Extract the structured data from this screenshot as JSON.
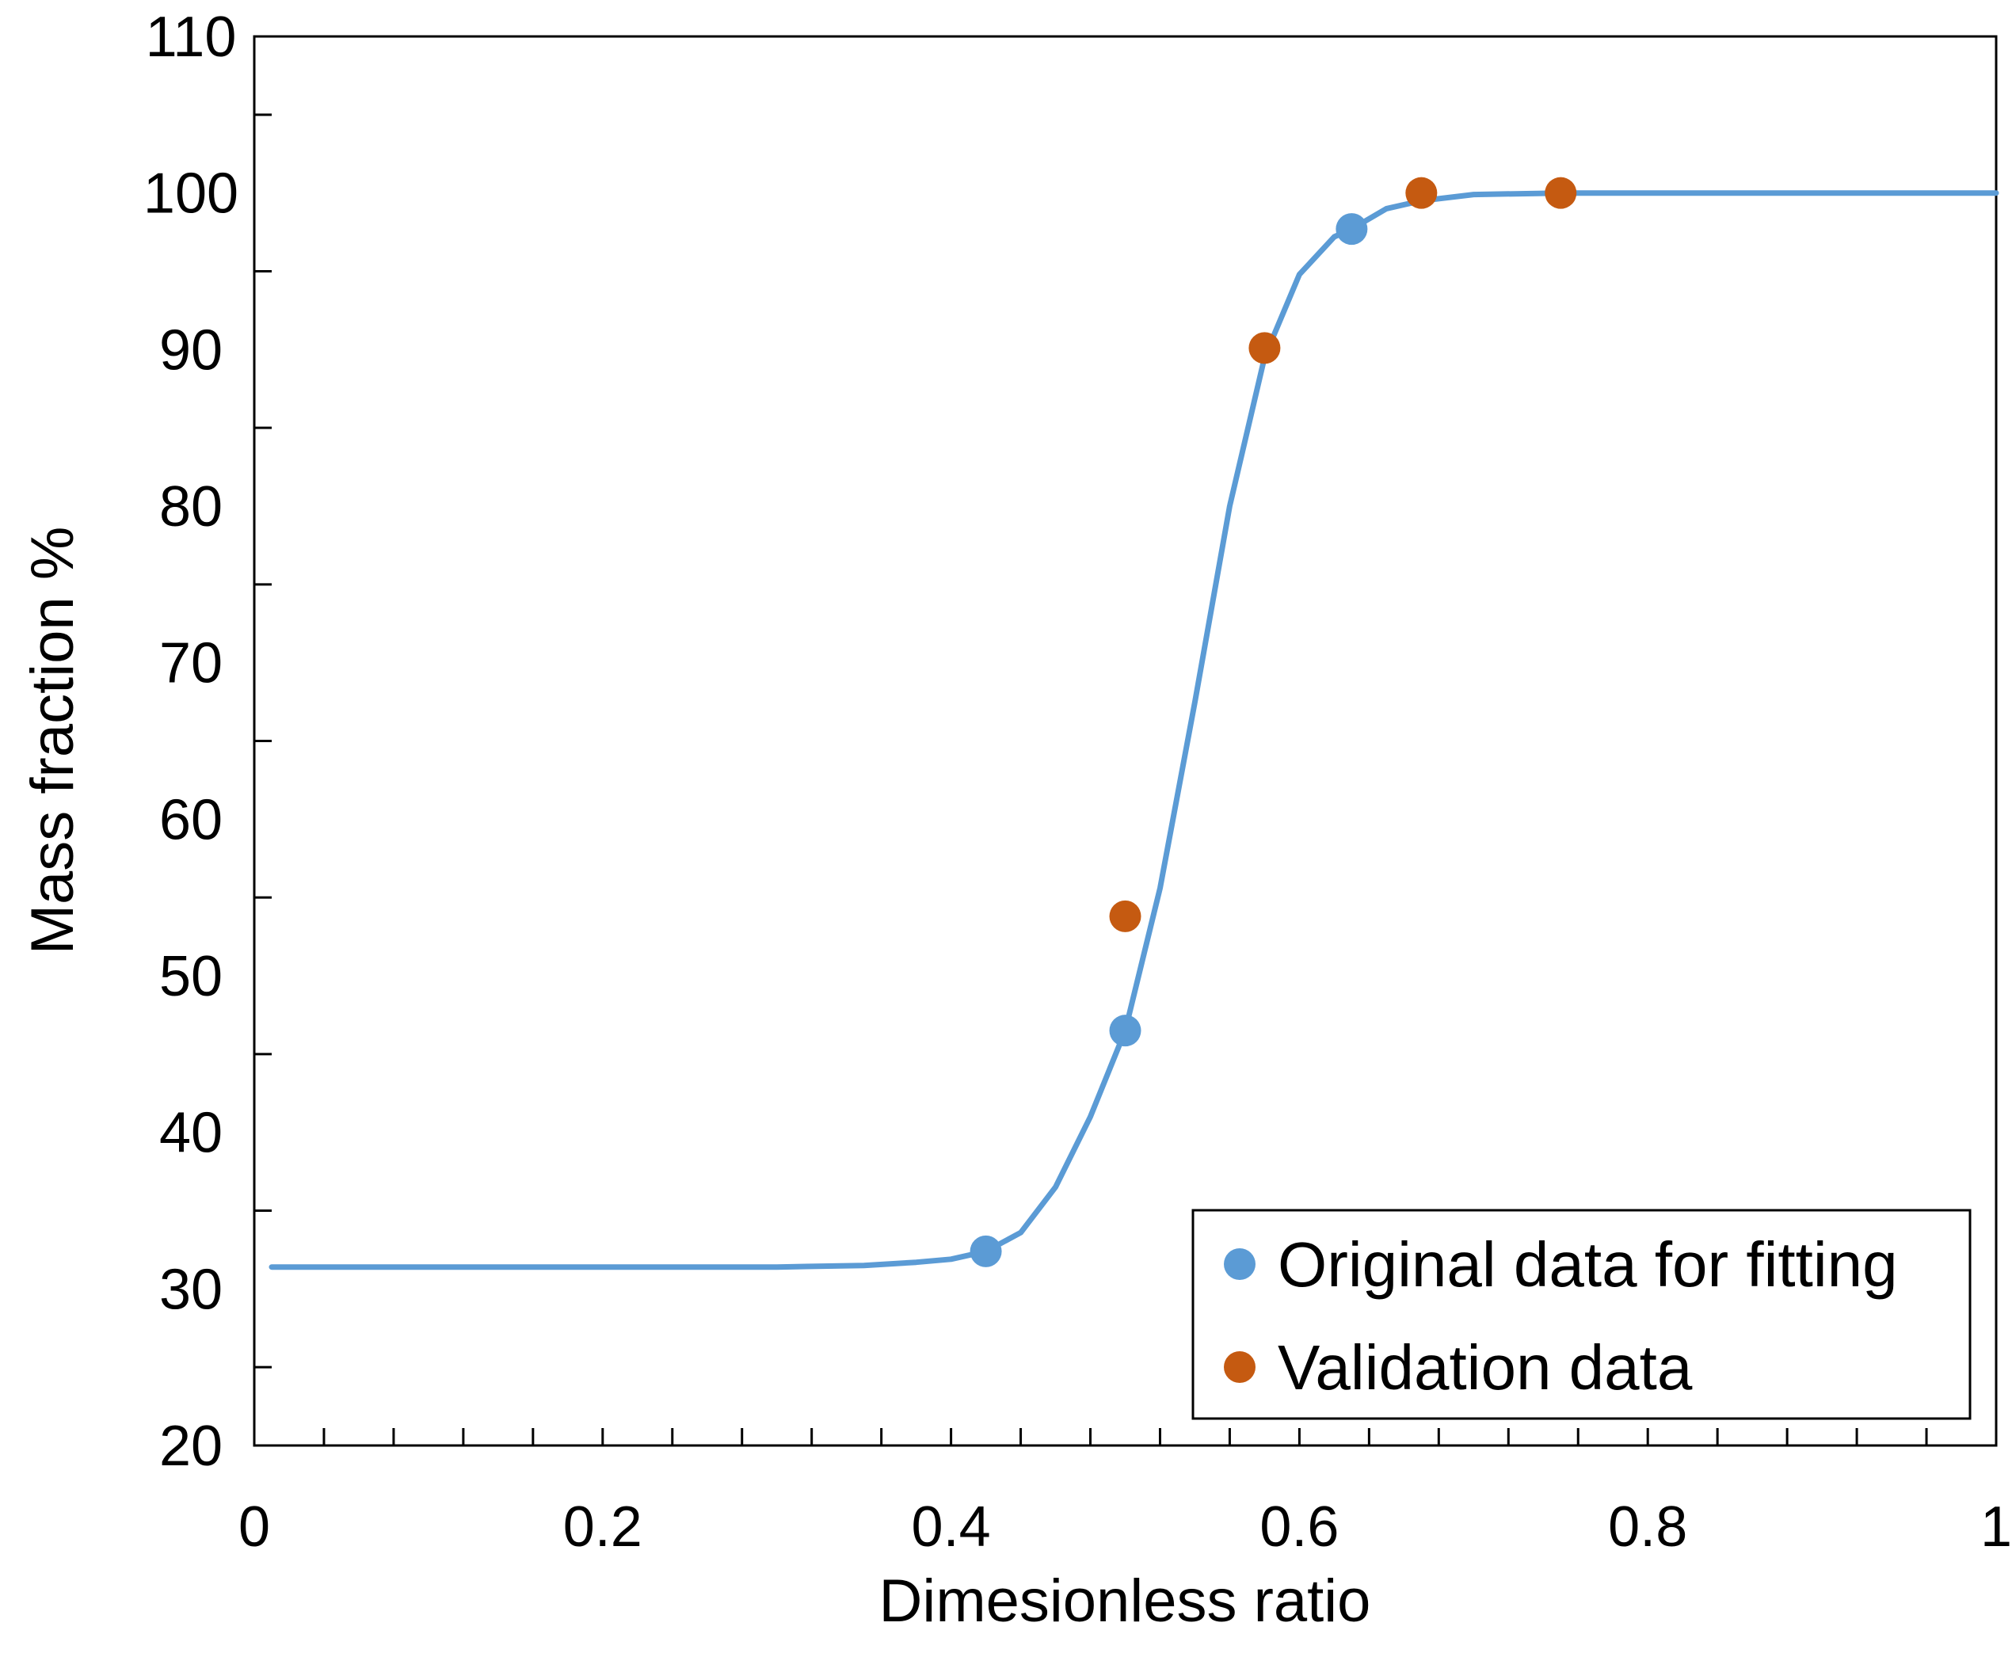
{
  "chart_data": {
    "type": "scatter",
    "xlabel": "Dimesionless ratio",
    "ylabel": "Mass fraction %",
    "xlim": [
      0,
      1
    ],
    "ylim": [
      20,
      110
    ],
    "x_ticks": [
      0,
      0.2,
      0.4,
      0.6,
      0.8,
      1
    ],
    "x_tick_labels": [
      "0",
      "0.2",
      "0.4",
      "0.6",
      "0.8",
      "1"
    ],
    "y_ticks": [
      20,
      30,
      40,
      50,
      60,
      70,
      80,
      90,
      100,
      110
    ],
    "y_tick_labels": [
      "20",
      "30",
      "40",
      "50",
      "60",
      "70",
      "80",
      "90",
      "100",
      "110"
    ],
    "grid": false,
    "legend_position": "bottom-right",
    "series": [
      {
        "name": "Original data for fitting",
        "color": "#5B9BD5",
        "marker": "circle",
        "x": [
          0.42,
          0.5,
          0.63
        ],
        "y": [
          32.4,
          46.5,
          97.7
        ]
      },
      {
        "name": "Validation data",
        "color": "#C55A11",
        "marker": "circle",
        "x": [
          0.5,
          0.58,
          0.67,
          0.75
        ],
        "y": [
          53.8,
          90.1,
          100,
          100
        ]
      }
    ],
    "fit_curve": {
      "color": "#5B9BD5",
      "x": [
        0.01,
        0.1,
        0.2,
        0.3,
        0.35,
        0.38,
        0.4,
        0.42,
        0.44,
        0.46,
        0.48,
        0.5,
        0.52,
        0.54,
        0.56,
        0.58,
        0.6,
        0.62,
        0.63,
        0.65,
        0.67,
        0.7,
        0.75,
        0.8,
        0.9,
        1.0
      ],
      "y": [
        31.4,
        31.4,
        31.4,
        31.4,
        31.5,
        31.7,
        31.9,
        32.4,
        33.6,
        36.5,
        41.0,
        46.5,
        55.6,
        67.5,
        80.0,
        89.5,
        94.8,
        97.2,
        97.7,
        99.0,
        99.5,
        99.9,
        100,
        100,
        100,
        100
      ]
    }
  }
}
